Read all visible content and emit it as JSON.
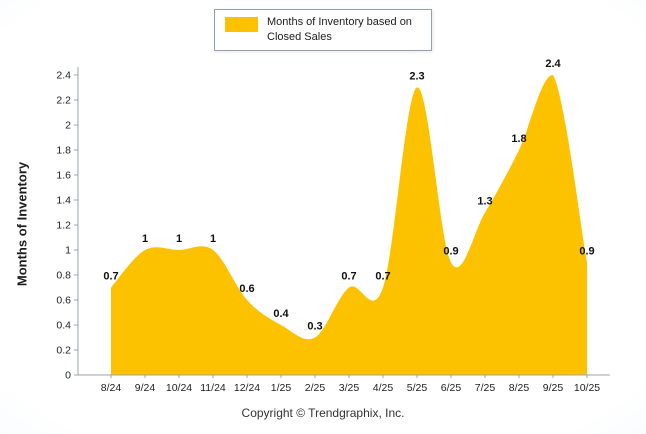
{
  "legend": {
    "label": "Months of Inventory based on Closed Sales"
  },
  "footer": "Copyright © Trendgraphix, Inc.",
  "colors": {
    "area": "#FCC200",
    "axis": "#9aa4ae",
    "text": "#222222",
    "value_label": "#111111"
  },
  "chart_data": {
    "type": "area",
    "title": "Months of Inventory based on Closed Sales",
    "ylabel": "Months of Inventory",
    "categories": [
      "8/24",
      "9/24",
      "10/24",
      "11/24",
      "12/24",
      "1/25",
      "2/25",
      "3/25",
      "4/25",
      "5/25",
      "6/25",
      "7/25",
      "8/25",
      "9/25",
      "10/25"
    ],
    "values": [
      0.7,
      1,
      1,
      1,
      0.6,
      0.4,
      0.3,
      0.7,
      0.7,
      2.3,
      0.9,
      1.3,
      1.8,
      2.4,
      0.9
    ],
    "labels": [
      "0.7",
      "1",
      "1",
      "1",
      "0.6",
      "0.4",
      "0.3",
      "0.7",
      "0.7",
      "2.3",
      "0.9",
      "1.3",
      "1.8",
      "2.4",
      "0.9"
    ],
    "ylim": [
      0,
      2.4
    ],
    "ytick_step": 0.2,
    "ytick_labels": [
      "0",
      "0.2",
      "0.4",
      "0.6",
      "0.8",
      "1",
      "1.2",
      "1.4",
      "1.6",
      "1.8",
      "2",
      "2.2",
      "2.4"
    ],
    "legend_position": "top",
    "grid": false
  }
}
